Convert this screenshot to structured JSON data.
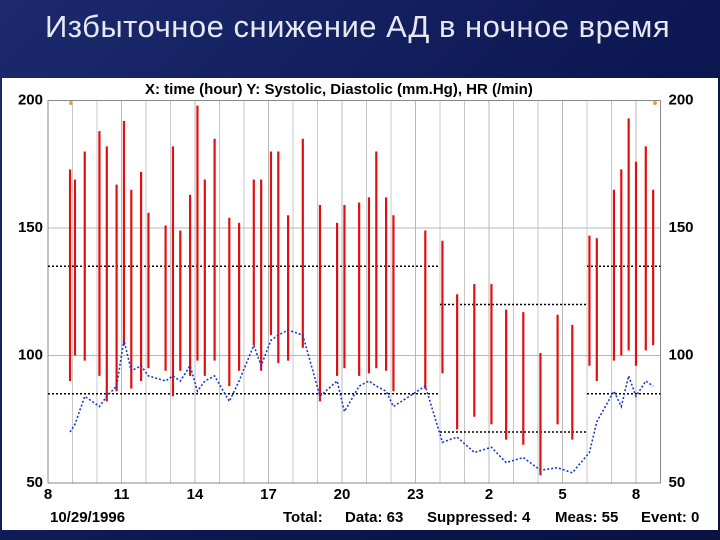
{
  "title": "Избыточное снижение АД в ночное время",
  "chart_data": {
    "type": "range-bar",
    "header": "X: time (hour)  Y: Systolic, Diastolic (mm.Hg), HR (/min)",
    "date": "10/29/1996",
    "footer": [
      "Total:",
      "Data: 63",
      "Suppressed: 4",
      "Meas: 55",
      "Event: 0"
    ],
    "x": [
      8.9,
      9.1,
      9.5,
      10.1,
      10.4,
      10.8,
      11.1,
      11.4,
      11.8,
      12.1,
      12.8,
      13.1,
      13.4,
      13.8,
      14.1,
      14.4,
      14.8,
      15.4,
      15.8,
      16.4,
      16.7,
      17.1,
      17.4,
      17.8,
      18.4,
      19.1,
      19.8,
      20.1,
      20.7,
      21.1,
      21.4,
      21.8,
      22.1,
      23.4,
      24.1,
      24.7,
      25.4,
      26.1,
      26.7,
      27.4,
      28.1,
      28.8,
      29.4,
      30.1,
      30.4,
      31.1,
      31.4,
      31.7,
      32.0,
      32.4,
      32.7
    ],
    "systolic": [
      173,
      169,
      180,
      188,
      182,
      167,
      192,
      165,
      172,
      156,
      151,
      182,
      149,
      163,
      198,
      169,
      185,
      154,
      152,
      169,
      169,
      180,
      180,
      155,
      185,
      159,
      152,
      159,
      160,
      162,
      180,
      162,
      155,
      149,
      145,
      124,
      128,
      128,
      118,
      117,
      101,
      116,
      112,
      147,
      146,
      165,
      173,
      193,
      176,
      182,
      165
    ],
    "diastolic": [
      90,
      100,
      98,
      92,
      82,
      86,
      104,
      87,
      90,
      95,
      94,
      84,
      94,
      92,
      98,
      92,
      98,
      88,
      94,
      104,
      94,
      108,
      97,
      98,
      103,
      82,
      92,
      95,
      92,
      93,
      95,
      94,
      86,
      87,
      93,
      71,
      76,
      73,
      67,
      65,
      53,
      73,
      67,
      96,
      90,
      98,
      100,
      102,
      96,
      102,
      104
    ],
    "hr": [
      70,
      73,
      84,
      80,
      84,
      88,
      106,
      94,
      96,
      92,
      90,
      92,
      90,
      96,
      86,
      90,
      92,
      82,
      90,
      104,
      96,
      106,
      108,
      110,
      108,
      84,
      90,
      78,
      88,
      90,
      88,
      86,
      80,
      88,
      66,
      68,
      62,
      64,
      58,
      60,
      55,
      56,
      54,
      62,
      74,
      86,
      80,
      92,
      84,
      90,
      88
    ],
    "bar_color": "#e01010",
    "hr_color": "#1a3cc8",
    "thresholds": [
      {
        "from": 8,
        "to": 24,
        "value": 135
      },
      {
        "from": 30,
        "to": 33,
        "value": 135
      },
      {
        "from": 8,
        "to": 24,
        "value": 85
      },
      {
        "from": 30,
        "to": 33,
        "value": 85
      },
      {
        "from": 24,
        "to": 30,
        "value": 120
      },
      {
        "from": 24,
        "to": 30,
        "value": 70
      }
    ],
    "xlim": [
      8,
      33
    ],
    "xticks": [
      8,
      11,
      14,
      17,
      20,
      23,
      {
        "value": 26,
        "label": "2"
      },
      {
        "value": 29,
        "label": "5"
      },
      {
        "value": 32,
        "label": "8"
      }
    ],
    "x_minor_ticks": [
      9,
      10,
      12,
      13,
      15,
      16,
      18,
      19,
      21,
      22,
      24,
      25,
      27,
      28,
      30,
      31,
      33
    ],
    "ylim": [
      50,
      200
    ],
    "yticks": [
      50,
      100,
      150,
      200
    ],
    "grid": true
  }
}
